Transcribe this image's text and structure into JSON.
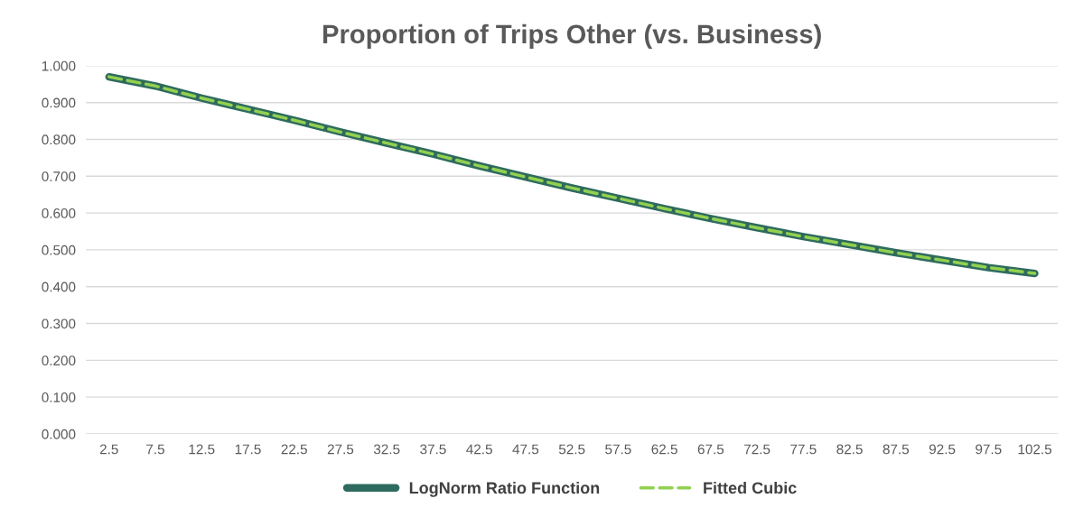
{
  "chart_data": {
    "type": "line",
    "title": "Proportion of Trips Other (vs. Business)",
    "categories": [
      "2.5",
      "7.5",
      "12.5",
      "17.5",
      "22.5",
      "27.5",
      "32.5",
      "37.5",
      "42.5",
      "47.5",
      "52.5",
      "57.5",
      "62.5",
      "67.5",
      "72.5",
      "77.5",
      "82.5",
      "87.5",
      "92.5",
      "97.5",
      "102.5"
    ],
    "series": [
      {
        "name": "LogNorm Ratio Function",
        "color": "#2e6b5e",
        "line_style": "solid",
        "values": [
          0.97,
          0.945,
          0.912,
          0.882,
          0.852,
          0.82,
          0.79,
          0.76,
          0.728,
          0.698,
          0.668,
          0.64,
          0.612,
          0.585,
          0.56,
          0.536,
          0.514,
          0.492,
          0.472,
          0.452,
          0.436
        ]
      },
      {
        "name": "Fitted Cubic",
        "color": "#92d050",
        "line_style": "dashed",
        "values": [
          0.97,
          0.945,
          0.912,
          0.882,
          0.852,
          0.82,
          0.79,
          0.76,
          0.728,
          0.698,
          0.668,
          0.64,
          0.612,
          0.585,
          0.56,
          0.536,
          0.514,
          0.492,
          0.472,
          0.452,
          0.436
        ]
      }
    ],
    "ylim": [
      0,
      1.0
    ],
    "yticks": [
      {
        "value": 0,
        "label": "0.000"
      },
      {
        "value": 0.1,
        "label": "0.100"
      },
      {
        "value": 0.2,
        "label": "0.200"
      },
      {
        "value": 0.3,
        "label": "0.300"
      },
      {
        "value": 0.4,
        "label": "0.400"
      },
      {
        "value": 0.5,
        "label": "0.500"
      },
      {
        "value": 0.6,
        "label": "0.600"
      },
      {
        "value": 0.7,
        "label": "0.700"
      },
      {
        "value": 0.8,
        "label": "0.800"
      },
      {
        "value": 0.9,
        "label": "0.900"
      },
      {
        "value": 1.0,
        "label": "1.000"
      }
    ],
    "grid": "y",
    "legend": "bottom",
    "marker": "none"
  }
}
